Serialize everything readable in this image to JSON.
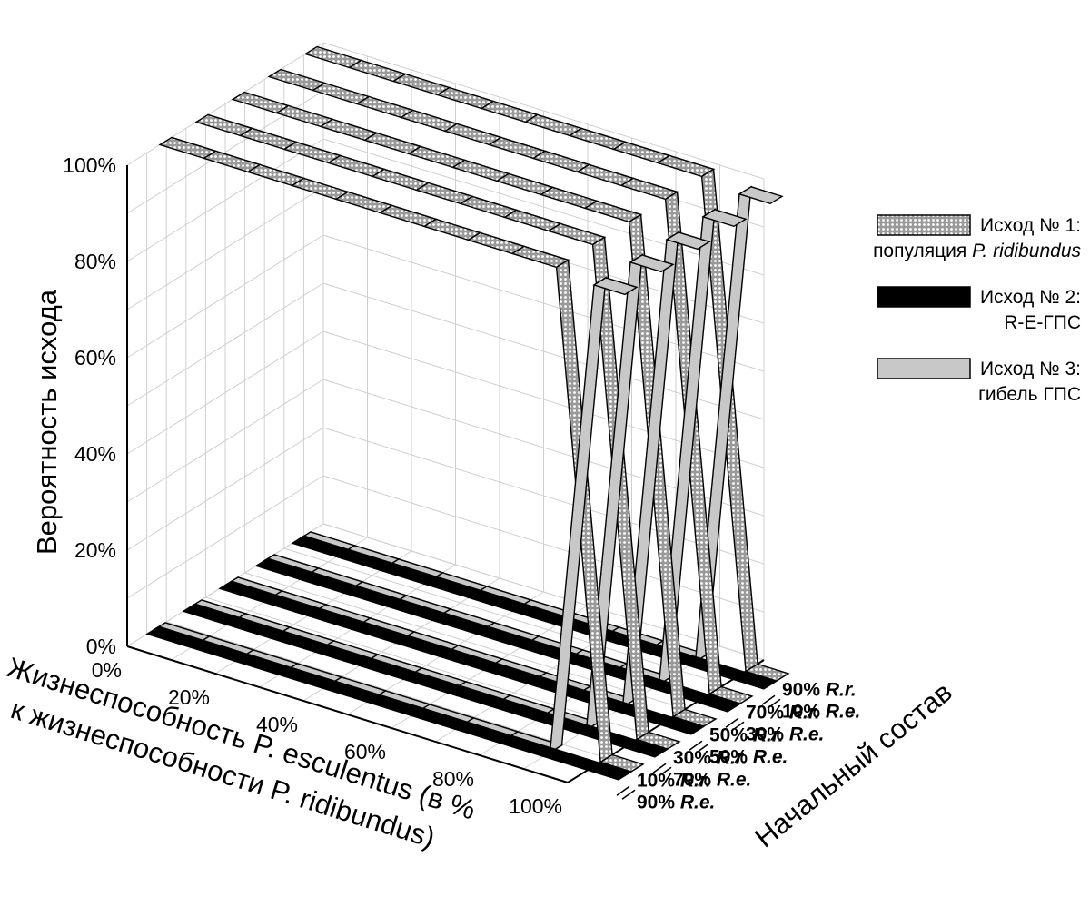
{
  "chart_data": {
    "type": "line",
    "ylabel": "Вероятность исхода",
    "xlabel_line1": "Жизнеспособность P. esculentus (в %",
    "xlabel_line2": "к жизнеспособности P. ridibundus)",
    "zlabel": "Начальный состав",
    "y_ticks": [
      "0%",
      "20%",
      "40%",
      "60%",
      "80%",
      "100%"
    ],
    "x_ticks": [
      "0%",
      "20%",
      "40%",
      "60%",
      "80%",
      "100%"
    ],
    "z_ticks": [
      {
        "line1_pct": "10%",
        "line1_sp": "R.r.",
        "line2_pct": "90%",
        "line2_sp": "R.e."
      },
      {
        "line1_pct": "30%",
        "line1_sp": "R.r.",
        "line2_pct": "70%",
        "line2_sp": "R.e."
      },
      {
        "line1_pct": "50%",
        "line1_sp": "R.r.",
        "line2_pct": "50%",
        "line2_sp": "R.e."
      },
      {
        "line1_pct": "70%",
        "line1_sp": "R.r.",
        "line2_pct": "30%",
        "line2_sp": "R.e."
      },
      {
        "line1_pct": "90%",
        "line1_sp": "R.r.",
        "line2_pct": "10%",
        "line2_sp": "R.e."
      }
    ],
    "x": [
      0,
      10,
      20,
      30,
      40,
      50,
      60,
      70,
      80,
      90,
      100
    ],
    "xlim": [
      0,
      100
    ],
    "ylim": [
      0,
      100
    ],
    "grid": true,
    "legend_position": "right",
    "legend": [
      {
        "line1": "Исход № 1:",
        "line2_prefix": "популяция ",
        "line2_italic": "P. ridibundus",
        "pattern": "dotted"
      },
      {
        "line1": "Исход № 2:",
        "line2_prefix": "R-E-ГПС",
        "line2_italic": "",
        "pattern": "black"
      },
      {
        "line1": "Исход № 3:",
        "line2_prefix": "гибель ГПС",
        "line2_italic": "",
        "pattern": "gray"
      }
    ],
    "series": [
      {
        "outcome": 1,
        "composition": 0,
        "values": [
          100,
          100,
          100,
          100,
          100,
          100,
          100,
          100,
          100,
          100,
          0
        ]
      },
      {
        "outcome": 2,
        "composition": 0,
        "values": [
          0,
          0,
          0,
          0,
          0,
          0,
          0,
          0,
          0,
          0,
          0
        ]
      },
      {
        "outcome": 3,
        "composition": 0,
        "values": [
          0,
          0,
          0,
          0,
          0,
          0,
          0,
          0,
          0,
          0,
          100
        ]
      },
      {
        "outcome": 1,
        "composition": 1,
        "values": [
          100,
          100,
          100,
          100,
          100,
          100,
          100,
          100,
          100,
          100,
          0
        ]
      },
      {
        "outcome": 2,
        "composition": 1,
        "values": [
          0,
          0,
          0,
          0,
          0,
          0,
          0,
          0,
          0,
          0,
          0
        ]
      },
      {
        "outcome": 3,
        "composition": 1,
        "values": [
          0,
          0,
          0,
          0,
          0,
          0,
          0,
          0,
          0,
          0,
          100
        ]
      },
      {
        "outcome": 1,
        "composition": 2,
        "values": [
          100,
          100,
          100,
          100,
          100,
          100,
          100,
          100,
          100,
          100,
          0
        ]
      },
      {
        "outcome": 2,
        "composition": 2,
        "values": [
          0,
          0,
          0,
          0,
          0,
          0,
          0,
          0,
          0,
          0,
          0
        ]
      },
      {
        "outcome": 3,
        "composition": 2,
        "values": [
          0,
          0,
          0,
          0,
          0,
          0,
          0,
          0,
          0,
          0,
          100
        ]
      },
      {
        "outcome": 1,
        "composition": 3,
        "values": [
          100,
          100,
          100,
          100,
          100,
          100,
          100,
          100,
          100,
          100,
          0
        ]
      },
      {
        "outcome": 2,
        "composition": 3,
        "values": [
          0,
          0,
          0,
          0,
          0,
          0,
          0,
          0,
          0,
          0,
          0
        ]
      },
      {
        "outcome": 3,
        "composition": 3,
        "values": [
          0,
          0,
          0,
          0,
          0,
          0,
          0,
          0,
          0,
          0,
          100
        ]
      },
      {
        "outcome": 1,
        "composition": 4,
        "values": [
          100,
          100,
          100,
          100,
          100,
          100,
          100,
          100,
          100,
          100,
          0
        ]
      },
      {
        "outcome": 2,
        "composition": 4,
        "values": [
          0,
          0,
          0,
          0,
          0,
          0,
          0,
          0,
          0,
          0,
          0
        ]
      },
      {
        "outcome": 3,
        "composition": 4,
        "values": [
          0,
          0,
          0,
          0,
          0,
          0,
          0,
          0,
          0,
          0,
          100
        ]
      }
    ],
    "colors": {
      "outcome1_fill": "#bdbdbd",
      "outcome1_dot": "#ffffff",
      "outcome2_fill": "#000000",
      "outcome3_fill": "#c8c8c8",
      "grid": "#cfcfcf",
      "axis": "#000000"
    }
  }
}
